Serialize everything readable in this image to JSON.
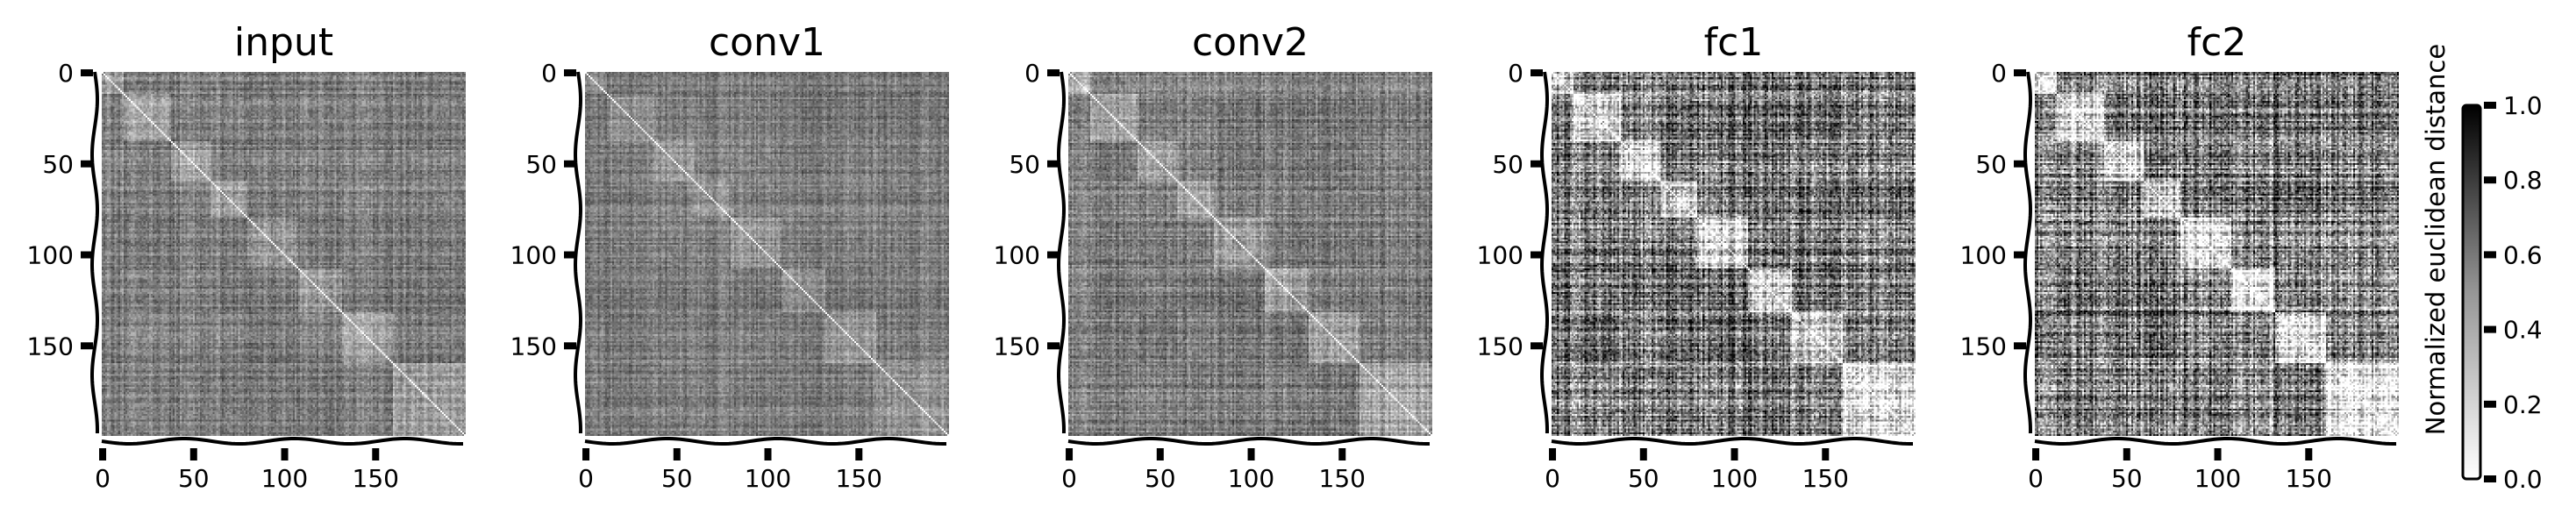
{
  "chart_data": {
    "type": "heatmap",
    "colormap": "Greys",
    "panels": [
      {
        "title": "input",
        "x_ticks": [
          "0",
          "50",
          "100",
          "150"
        ],
        "y_ticks": [
          "0",
          "50",
          "100",
          "150"
        ],
        "n": 200,
        "contrast": 0.35,
        "block_strength": 0.25
      },
      {
        "title": "conv1",
        "x_ticks": [
          "0",
          "50",
          "100",
          "150"
        ],
        "y_ticks": [
          "0",
          "50",
          "100",
          "150"
        ],
        "n": 200,
        "contrast": 0.32,
        "block_strength": 0.18
      },
      {
        "title": "conv2",
        "x_ticks": [
          "0",
          "50",
          "100",
          "150"
        ],
        "y_ticks": [
          "0",
          "50",
          "100",
          "150"
        ],
        "n": 200,
        "contrast": 0.38,
        "block_strength": 0.3
      },
      {
        "title": "fc1",
        "x_ticks": [
          "0",
          "50",
          "100",
          "150"
        ],
        "y_ticks": [
          "0",
          "50",
          "100",
          "150"
        ],
        "n": 200,
        "contrast": 0.85,
        "block_strength": 0.7
      },
      {
        "title": "fc2",
        "x_ticks": [
          "0",
          "50",
          "100",
          "150"
        ],
        "y_ticks": [
          "0",
          "50",
          "100",
          "150"
        ],
        "n": 200,
        "contrast": 0.9,
        "block_strength": 0.75
      }
    ],
    "colorbar": {
      "label": "Normalized euclidean distance",
      "range": [
        0.0,
        1.0
      ],
      "ticks": [
        "0.0",
        "0.2",
        "0.4",
        "0.6",
        "0.8",
        "1.0"
      ]
    }
  }
}
